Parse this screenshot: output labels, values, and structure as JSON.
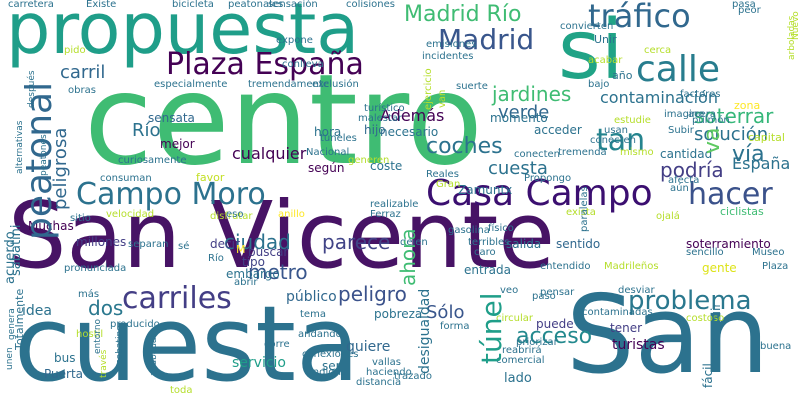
{
  "words": [
    {
      "text": "centro",
      "color": "#3fbc73"
    },
    {
      "text": "San Vicente",
      "color": "#471365"
    },
    {
      "text": "cuesta",
      "color": "#2c728e"
    },
    {
      "text": "San",
      "color": "#2c728e"
    },
    {
      "text": "propuesta",
      "color": "#1f9e89"
    },
    {
      "text": "si",
      "color": "#20a386"
    },
    {
      "text": "Casa Campo",
      "color": "#3b0f70"
    },
    {
      "text": "Campo Moro",
      "color": "#2c728e"
    },
    {
      "text": "Plaza España",
      "color": "#440154"
    },
    {
      "text": "calle",
      "color": "#287d8e"
    },
    {
      "text": "tráfico",
      "color": "#31688e"
    },
    {
      "text": "Madrid Río",
      "color": "#3fbc73"
    },
    {
      "text": "Madrid",
      "color": "#39568c"
    },
    {
      "text": "hacer",
      "color": "#3b528b"
    },
    {
      "text": "carriles",
      "color": "#433e85"
    },
    {
      "text": "problema",
      "color": "#2a788e"
    },
    {
      "text": "tan",
      "color": "#25848e"
    },
    {
      "text": "túnel",
      "color": "#1f9e89"
    },
    {
      "text": "peatonal",
      "color": "#31688e"
    },
    {
      "text": "contaminación",
      "color": "#2c728e"
    },
    {
      "text": "soterrar",
      "color": "#35b779"
    },
    {
      "text": "solución",
      "color": "#2c728e"
    },
    {
      "text": "vía",
      "color": "#2c728e"
    },
    {
      "text": "jardines",
      "color": "#3fbc73"
    },
    {
      "text": "verde",
      "color": "#31688e"
    },
    {
      "text": "carril",
      "color": "#31688e"
    },
    {
      "text": "coches",
      "color": "#2c728e"
    },
    {
      "text": "podría",
      "color": "#433e85"
    },
    {
      "text": "parece",
      "color": "#414487"
    },
    {
      "text": "ciudad",
      "color": "#2c728e"
    },
    {
      "text": "metro",
      "color": "#39568c"
    },
    {
      "text": "peligro",
      "color": "#3b528b"
    },
    {
      "text": "dos",
      "color": "#2a788e"
    },
    {
      "text": "acceso",
      "color": "#23898e"
    },
    {
      "text": "ahora",
      "color": "#3fbc73"
    },
    {
      "text": "cuesta",
      "color": "#2c728e"
    },
    {
      "text": "España",
      "color": "#2c728e"
    },
    {
      "text": "cualquier",
      "color": "#440154"
    },
    {
      "text": "Río",
      "color": "#2c728e"
    },
    {
      "text": "peligrosa",
      "color": "#31688e"
    },
    {
      "text": "va",
      "color": "#5ec962"
    },
    {
      "text": "Además",
      "color": "#440154"
    },
    {
      "text": "Sólo",
      "color": "#39568c"
    },
    {
      "text": "quiere",
      "color": "#31688e"
    },
    {
      "text": "servicio",
      "color": "#1f9e89"
    },
    {
      "text": "público",
      "color": "#31688e"
    },
    {
      "text": "idea",
      "color": "#2c728e"
    },
    {
      "text": "lado",
      "color": "#2c728e"
    },
    {
      "text": "turistas",
      "color": "#440154"
    },
    {
      "text": "Puerta",
      "color": "#31688e"
    },
    {
      "text": "bus",
      "color": "#2c728e"
    },
    {
      "text": "entrada",
      "color": "#2c728e"
    },
    {
      "text": "tipo",
      "color": "#414487"
    },
    {
      "text": "buscar",
      "color": "#433e85"
    },
    {
      "text": "salida",
      "color": "#2c728e"
    },
    {
      "text": "sentido",
      "color": "#31688e"
    },
    {
      "text": "soterramiento",
      "color": "#440154"
    },
    {
      "text": "mejor",
      "color": "#440154"
    },
    {
      "text": "hora",
      "color": "#2c728e"
    },
    {
      "text": "hijo",
      "color": "#31688e"
    },
    {
      "text": "según",
      "color": "#440154"
    },
    {
      "text": "coste",
      "color": "#2c728e"
    },
    {
      "text": "decir",
      "color": "#433e85"
    },
    {
      "text": "millones",
      "color": "#433e85"
    },
    {
      "text": "sensata",
      "color": "#31688e"
    },
    {
      "text": "momento",
      "color": "#2c728e"
    },
    {
      "text": "acceder",
      "color": "#2c728e"
    },
    {
      "text": "necesario",
      "color": "#2c728e"
    },
    {
      "text": "puede",
      "color": "#433e85"
    },
    {
      "text": "Zamuntx",
      "color": "#2c728e"
    },
    {
      "text": "cantidad",
      "color": "#2c728e"
    },
    {
      "text": "Muchas",
      "color": "#440154"
    },
    {
      "text": "construir",
      "color": "#2c728e"
    },
    {
      "text": "fácil",
      "color": "#2c728e"
    },
    {
      "text": "tener",
      "color": "#433e85"
    },
    {
      "text": "ser",
      "color": "#2c728e"
    },
    {
      "text": "pobreza",
      "color": "#2c728e"
    },
    {
      "text": "forma",
      "color": "#2c728e"
    },
    {
      "text": "paso",
      "color": "#2c728e"
    },
    {
      "text": "sitio",
      "color": "#2c728e"
    },
    {
      "text": "favor",
      "color": "#c2df23"
    },
    {
      "text": "gente",
      "color": "#dde318"
    },
    {
      "text": "alternativas",
      "color": "#2c728e"
    },
    {
      "text": "acuerdo",
      "color": "#2c728e"
    },
    {
      "text": "Totalmente",
      "color": "#2c728e"
    },
    {
      "text": "sabatini",
      "color": "#2c728e"
    },
    {
      "text": "carretera",
      "color": "#2c728e"
    },
    {
      "text": "Existe",
      "color": "#2c728e"
    },
    {
      "text": "bicicleta",
      "color": "#2c728e"
    },
    {
      "text": "zona",
      "color": "#fde725"
    },
    {
      "text": "pasa",
      "color": "#2c728e"
    },
    {
      "text": "peor",
      "color": "#2c728e"
    },
    {
      "text": "Plaza",
      "color": "#2c728e"
    },
    {
      "text": "Museo",
      "color": "#2c728e"
    },
    {
      "text": "sencillo",
      "color": "#2c728e"
    },
    {
      "text": "soluciona",
      "color": "#2c728e"
    },
    {
      "text": "buena",
      "color": "#2c728e"
    },
    {
      "text": "capital",
      "color": "#b5de2b"
    },
    {
      "text": "ciclistas",
      "color": "#3fbc73"
    },
    {
      "text": "acera",
      "color": "#2c728e"
    },
    {
      "text": "factores",
      "color": "#2c728e"
    },
    {
      "text": "Unir",
      "color": "#2c728e"
    },
    {
      "text": "bajo",
      "color": "#2c728e"
    },
    {
      "text": "año",
      "color": "#2c728e"
    },
    {
      "text": "Nacional",
      "color": "#2c728e"
    },
    {
      "text": "Reales",
      "color": "#2c728e"
    },
    {
      "text": "Gran",
      "color": "#b5de2b"
    },
    {
      "text": "Ferraz",
      "color": "#2c728e"
    },
    {
      "text": "gasolina",
      "color": "#2c728e"
    },
    {
      "text": "desigualdad",
      "color": "#2c728e"
    },
    {
      "text": "distancia",
      "color": "#2c728e"
    },
    {
      "text": "trazado",
      "color": "#2c728e"
    },
    {
      "text": "haciendo",
      "color": "#2c728e"
    },
    {
      "text": "vallas",
      "color": "#2c728e"
    },
    {
      "text": "corre",
      "color": "#2c728e"
    },
    {
      "text": "conexiones",
      "color": "#2c728e"
    },
    {
      "text": "indigna",
      "color": "#2c728e"
    },
    {
      "text": "andando",
      "color": "#2c728e"
    },
    {
      "text": "tema",
      "color": "#2c728e"
    },
    {
      "text": "producido",
      "color": "#2c728e"
    },
    {
      "text": "hostil",
      "color": "#b5de2b"
    },
    {
      "text": "más",
      "color": "#2c728e"
    },
    {
      "text": "abrir",
      "color": "#2c728e"
    },
    {
      "text": "embargo",
      "color": "#2c728e"
    },
    {
      "text": "M",
      "color": "#fde725"
    },
    {
      "text": "anillo",
      "color": "#fde725"
    },
    {
      "text": "sé",
      "color": "#2c728e"
    },
    {
      "text": "Río",
      "color": "#2c728e"
    },
    {
      "text": "separan",
      "color": "#2c728e"
    },
    {
      "text": "pronunciada",
      "color": "#2c728e"
    },
    {
      "text": "disfrutar",
      "color": "#b5de2b"
    },
    {
      "text": "eso",
      "color": "#2c728e"
    },
    {
      "text": "velocidad",
      "color": "#b5de2b"
    },
    {
      "text": "curiosamente",
      "color": "#2c728e"
    },
    {
      "text": "obras",
      "color": "#2c728e"
    },
    {
      "text": "después",
      "color": "#2c728e"
    },
    {
      "text": "especialmente",
      "color": "#2c728e"
    },
    {
      "text": "tremendamente",
      "color": "#2c728e"
    },
    {
      "text": "exclusión",
      "color": "#2c728e"
    },
    {
      "text": "turístico",
      "color": "#2c728e"
    },
    {
      "text": "malestar",
      "color": "#2c728e"
    },
    {
      "text": "túneles",
      "color": "#2c728e"
    },
    {
      "text": "generen",
      "color": "#b5de2b"
    },
    {
      "text": "conecten",
      "color": "#2c728e"
    },
    {
      "text": "Propongo",
      "color": "#2c728e"
    },
    {
      "text": "físico",
      "color": "#2c728e"
    },
    {
      "text": "pensar",
      "color": "#2c728e"
    },
    {
      "text": "desviar",
      "color": "#2c728e"
    },
    {
      "text": "costoso",
      "color": "#b5de2b"
    },
    {
      "text": "circular",
      "color": "#b5de2b"
    },
    {
      "text": "priorizar",
      "color": "#2c728e"
    },
    {
      "text": "reabrirá",
      "color": "#2c728e"
    },
    {
      "text": "comercial",
      "color": "#2c728e"
    },
    {
      "text": "veo",
      "color": "#2c728e"
    },
    {
      "text": "caro",
      "color": "#2c728e"
    },
    {
      "text": "terribles",
      "color": "#2c728e"
    },
    {
      "text": "entendido",
      "color": "#2c728e"
    },
    {
      "text": "Madrileños",
      "color": "#b5de2b"
    },
    {
      "text": "ojalá",
      "color": "#b5de2b"
    },
    {
      "text": "aún",
      "color": "#2c728e"
    },
    {
      "text": "afecta",
      "color": "#2c728e"
    },
    {
      "text": "tremenda",
      "color": "#2c728e"
    },
    {
      "text": "conecten",
      "color": "#2c728e"
    },
    {
      "text": "mismo",
      "color": "#b5de2b"
    },
    {
      "text": "usan",
      "color": "#2c728e"
    },
    {
      "text": "estudie",
      "color": "#b5de2b"
    },
    {
      "text": "Subir",
      "color": "#2c728e"
    },
    {
      "text": "imagino",
      "color": "#2c728e"
    },
    {
      "text": "pulmón",
      "color": "#2c728e"
    },
    {
      "text": "acabar",
      "color": "#b5de2b"
    },
    {
      "text": "cerca",
      "color": "#b5de2b"
    },
    {
      "text": "convierten",
      "color": "#2c728e"
    },
    {
      "text": "suerte",
      "color": "#2c728e"
    },
    {
      "text": "incidentes",
      "color": "#2c728e"
    },
    {
      "text": "emisiones",
      "color": "#2c728e"
    },
    {
      "text": "peatones",
      "color": "#2c728e"
    },
    {
      "text": "colisiones",
      "color": "#2c728e"
    },
    {
      "text": "sensación",
      "color": "#2c728e"
    },
    {
      "text": "peatonales",
      "color": "#2c728e"
    },
    {
      "text": "expone",
      "color": "#2c728e"
    },
    {
      "text": "conlleva",
      "color": "#2c728e"
    },
    {
      "text": "pido",
      "color": "#b5de2b"
    },
    {
      "text": "unen",
      "color": "#2c728e"
    },
    {
      "text": "genera",
      "color": "#2c728e"
    },
    {
      "text": "entorno",
      "color": "#2c728e"
    },
    {
      "text": "través",
      "color": "#b5de2b"
    },
    {
      "text": "sabatino",
      "color": "#2c728e"
    },
    {
      "text": "acabadas",
      "color": "#2c728e"
    },
    {
      "text": "consuman",
      "color": "#2c728e"
    },
    {
      "text": "exista",
      "color": "#b5de2b"
    },
    {
      "text": "contaminadas",
      "color": "#2c728e"
    },
    {
      "text": "paralelas",
      "color": "#2c728e"
    },
    {
      "text": "Nuevo",
      "color": "#b5de2b"
    },
    {
      "text": "arboladas",
      "color": "#b5de2b"
    },
    {
      "text": "realizable",
      "color": "#2c728e"
    },
    {
      "text": "dejen",
      "color": "#2c728e"
    },
    {
      "text": "ejercicio",
      "color": "#b5de2b"
    },
    {
      "text": "van",
      "color": "#b5de2b"
    },
    {
      "text": "toda",
      "color": "#b5de2b"
    },
    {
      "text": "u",
      "color": "#2c728e"
    }
  ]
}
